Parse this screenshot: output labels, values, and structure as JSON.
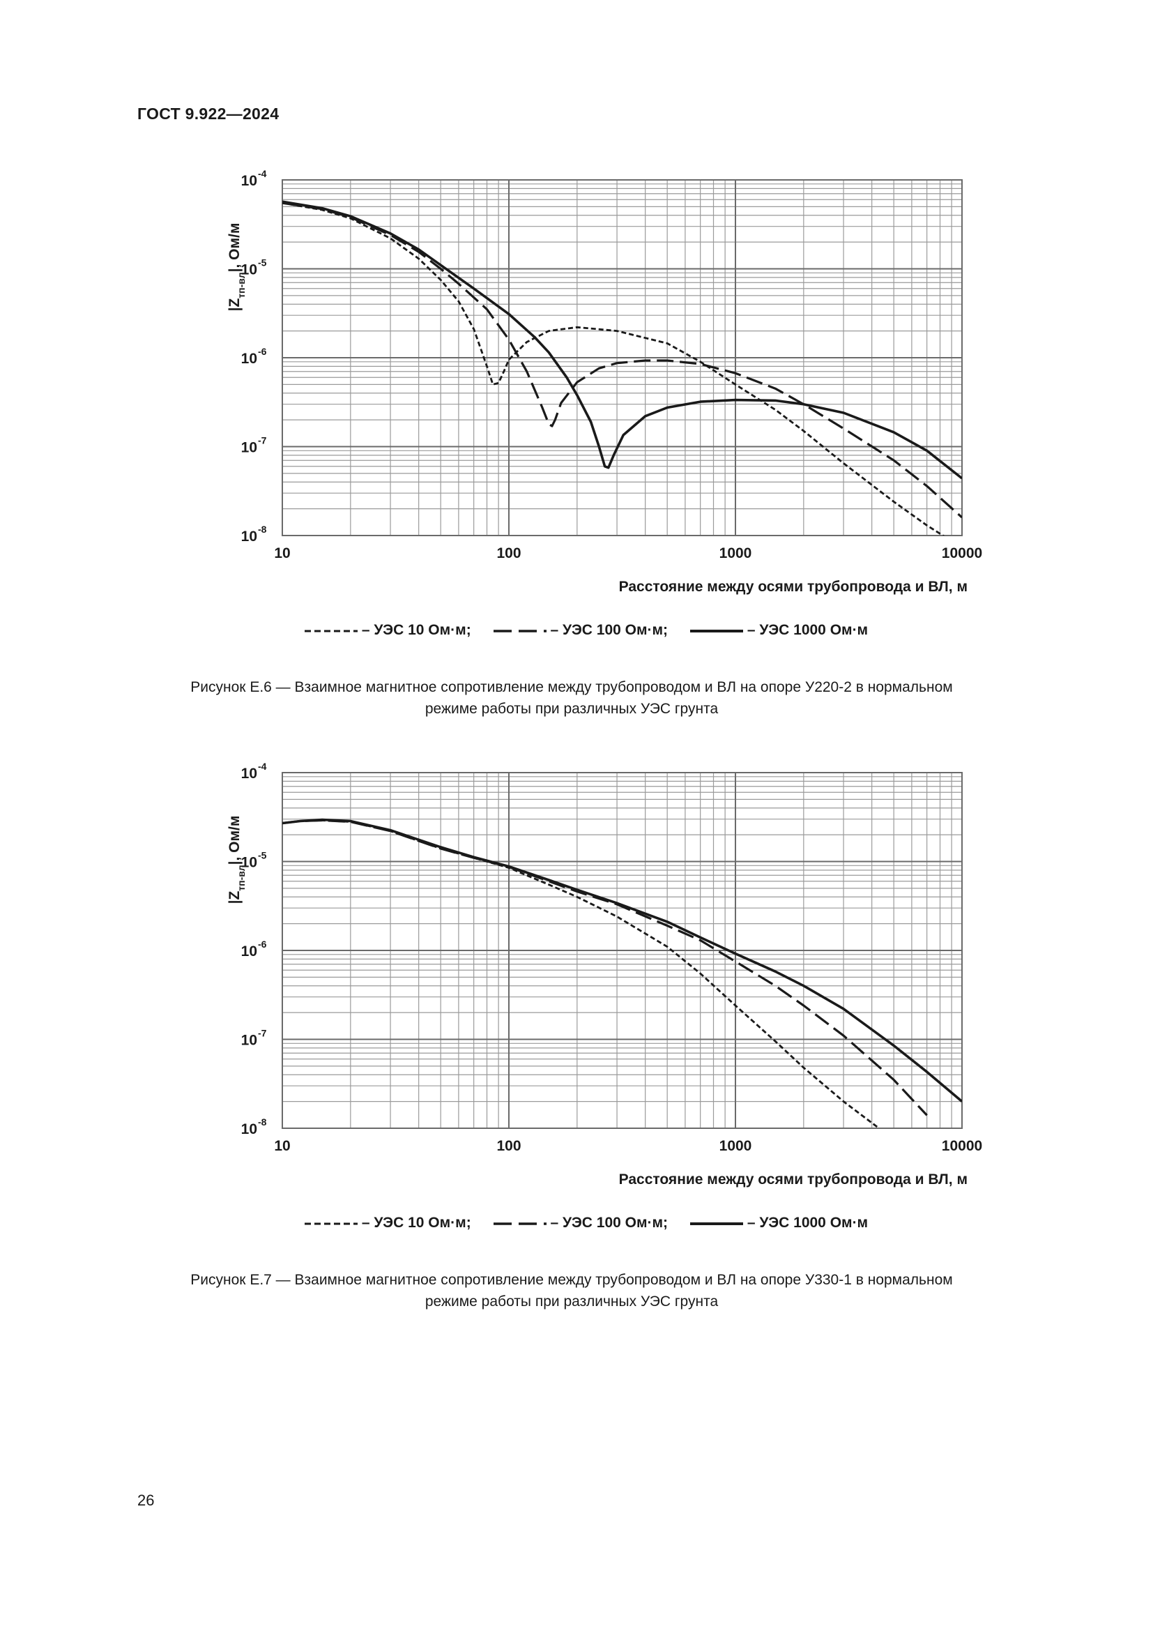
{
  "header": {
    "doc_code": "ГОСТ 9.922—2024"
  },
  "page_number": "26",
  "colors": {
    "ink": "#1a1a1a",
    "grid": "#9a9a9a",
    "frame": "#6a6a6a"
  },
  "figures": [
    {
      "caption_line1": "Рисунок Е.6 — Взаимное магнитное сопротивление между трубопроводом и ВЛ на опоре У220-2 в нормальном",
      "caption_line2": "режиме работы при различных УЭС грунта",
      "ylabel_main": "|Z",
      "ylabel_sub": "тп-вл",
      "ylabel_unit": "|, Ом/м",
      "legend": [
        {
          "style": "dotted",
          "label": "– УЭС 10 Ом·м;"
        },
        {
          "style": "dashed",
          "label": "– УЭС 100 Ом·м;"
        },
        {
          "style": "solid",
          "label": "– УЭС 1000 Ом·м"
        }
      ]
    },
    {
      "caption_line1": "Рисунок Е.7 — Взаимное магнитное сопротивление между трубопроводом и ВЛ на опоре У330-1 в нормальном",
      "caption_line2": "режиме работы при различных УЭС грунта",
      "ylabel_main": "|Z",
      "ylabel_sub": "тп-вл",
      "ylabel_unit": "|, Ом/м",
      "legend": [
        {
          "style": "dotted",
          "label": "– УЭС 10 Ом·м;"
        },
        {
          "style": "dashed",
          "label": "– УЭС 100 Ом·м;"
        },
        {
          "style": "solid",
          "label": "– УЭС 1000 Ом·м"
        }
      ]
    }
  ],
  "chart_data": [
    {
      "type": "line",
      "title": "",
      "xlabel": "Расстояние между осями трубопровода и ВЛ, м",
      "ylabel": "|Zтп-вл|, Ом/м",
      "xscale": "log",
      "yscale": "log",
      "xlim": [
        10,
        10000
      ],
      "ylim": [
        1e-08,
        0.0001
      ],
      "grid": true,
      "x_ticks": [
        "10",
        "100",
        "1000",
        "10000"
      ],
      "y_ticks": [
        {
          "base": "10",
          "exp": "-8"
        },
        {
          "base": "10",
          "exp": "-7"
        },
        {
          "base": "10",
          "exp": "-6"
        },
        {
          "base": "10",
          "exp": "-5"
        },
        {
          "base": "10",
          "exp": "-4"
        }
      ],
      "series": [
        {
          "name": "УЭС 10 Ом·м",
          "style": "dotted",
          "x": [
            10,
            15,
            20,
            30,
            40,
            50,
            60,
            70,
            80,
            85,
            90,
            95,
            100,
            120,
            150,
            200,
            300,
            500,
            700,
            1000,
            1500,
            2000,
            3000,
            5000,
            7000,
            8500
          ],
          "y": [
            5.5e-05,
            4.6e-05,
            3.7e-05,
            2.2e-05,
            1.3e-05,
            7.5e-06,
            4.3e-06,
            2.1e-06,
            8e-07,
            5e-07,
            5.2e-07,
            7e-07,
            9.5e-07,
            1.5e-06,
            2e-06,
            2.2e-06,
            2e-06,
            1.45e-06,
            9e-07,
            5e-07,
            2.6e-07,
            1.5e-07,
            6.5e-08,
            2.4e-08,
            1.3e-08,
            9.5e-09
          ]
        },
        {
          "name": "УЭС 100 Ом·м",
          "style": "dashed",
          "x": [
            10,
            15,
            20,
            30,
            40,
            50,
            60,
            80,
            100,
            120,
            140,
            150,
            155,
            160,
            170,
            200,
            250,
            300,
            400,
            500,
            700,
            1000,
            1500,
            2000,
            3000,
            5000,
            7000,
            10000
          ],
          "y": [
            5.5e-05,
            4.7e-05,
            3.8e-05,
            2.4e-05,
            1.55e-05,
            1e-05,
            6.8e-06,
            3.5e-06,
            1.6e-06,
            7e-07,
            2.8e-07,
            1.8e-07,
            1.7e-07,
            2e-07,
            3.1e-07,
            5.3e-07,
            7.6e-07,
            8.7e-07,
            9.3e-07,
            9.3e-07,
            8.5e-07,
            6.7e-07,
            4.5e-07,
            3e-07,
            1.6e-07,
            7e-08,
            3.6e-08,
            1.6e-08
          ]
        },
        {
          "name": "УЭС 1000 Ом·м",
          "style": "solid",
          "x": [
            10,
            15,
            20,
            30,
            40,
            50,
            70,
            100,
            130,
            150,
            180,
            200,
            230,
            250,
            265,
            275,
            290,
            320,
            400,
            500,
            700,
            1000,
            1500,
            2000,
            3000,
            5000,
            7000,
            10000
          ],
          "y": [
            5.7e-05,
            4.8e-05,
            3.9e-05,
            2.5e-05,
            1.65e-05,
            1.1e-05,
            6e-06,
            3.1e-06,
            1.7e-06,
            1.15e-06,
            6e-07,
            3.8e-07,
            1.9e-07,
            1e-07,
            6e-08,
            5.8e-08,
            8e-08,
            1.35e-07,
            2.2e-07,
            2.75e-07,
            3.2e-07,
            3.35e-07,
            3.3e-07,
            3e-07,
            2.4e-07,
            1.45e-07,
            9e-08,
            4.4e-08
          ]
        }
      ]
    },
    {
      "type": "line",
      "title": "",
      "xlabel": "Расстояние между осями трубопровода и ВЛ, м",
      "ylabel": "|Zтп-вл|, Ом/м",
      "xscale": "log",
      "yscale": "log",
      "xlim": [
        10,
        10000
      ],
      "ylim": [
        1e-08,
        0.0001
      ],
      "grid": true,
      "x_ticks": [
        "10",
        "100",
        "1000",
        "10000"
      ],
      "y_ticks": [
        {
          "base": "10",
          "exp": "-8"
        },
        {
          "base": "10",
          "exp": "-7"
        },
        {
          "base": "10",
          "exp": "-6"
        },
        {
          "base": "10",
          "exp": "-5"
        },
        {
          "base": "10",
          "exp": "-4"
        }
      ],
      "series": [
        {
          "name": "УЭС 10 Ом·м",
          "style": "dotted",
          "x": [
            10,
            12,
            15,
            20,
            30,
            50,
            70,
            100,
            150,
            200,
            300,
            500,
            700,
            1000,
            1500,
            2000,
            3000,
            4300
          ],
          "y": [
            2.7e-05,
            2.85e-05,
            2.9e-05,
            2.8e-05,
            2.2e-05,
            1.4e-05,
            1.1e-05,
            8.5e-06,
            5.5e-06,
            4e-06,
            2.4e-06,
            1.1e-06,
            5.5e-07,
            2.4e-07,
            9.5e-08,
            4.8e-08,
            2e-08,
            1e-08
          ]
        },
        {
          "name": "УЭС 100 Ом·м",
          "style": "dashed",
          "x": [
            10,
            12,
            15,
            20,
            30,
            50,
            70,
            100,
            150,
            200,
            300,
            500,
            700,
            1000,
            1500,
            2000,
            3000,
            5000,
            7000
          ],
          "y": [
            2.7e-05,
            2.85e-05,
            2.9e-05,
            2.8e-05,
            2.2e-05,
            1.4e-05,
            1.1e-05,
            8.7e-06,
            6e-06,
            4.6e-06,
            3.3e-06,
            1.9e-06,
            1.3e-06,
            7.5e-07,
            4e-07,
            2.4e-07,
            1.1e-07,
            3.5e-08,
            1.4e-08
          ]
        },
        {
          "name": "УЭС 1000 Ом·м",
          "style": "solid",
          "x": [
            10,
            12,
            15,
            20,
            30,
            50,
            70,
            100,
            150,
            200,
            300,
            500,
            700,
            1000,
            1500,
            2000,
            3000,
            5000,
            7000,
            10000
          ],
          "y": [
            2.7e-05,
            2.85e-05,
            2.95e-05,
            2.85e-05,
            2.25e-05,
            1.45e-05,
            1.12e-05,
            8.8e-06,
            6.2e-06,
            4.8e-06,
            3.4e-06,
            2.1e-06,
            1.4e-06,
            9.2e-07,
            5.8e-07,
            4e-07,
            2.2e-07,
            8.5e-08,
            4.3e-08,
            2e-08
          ]
        }
      ]
    }
  ]
}
